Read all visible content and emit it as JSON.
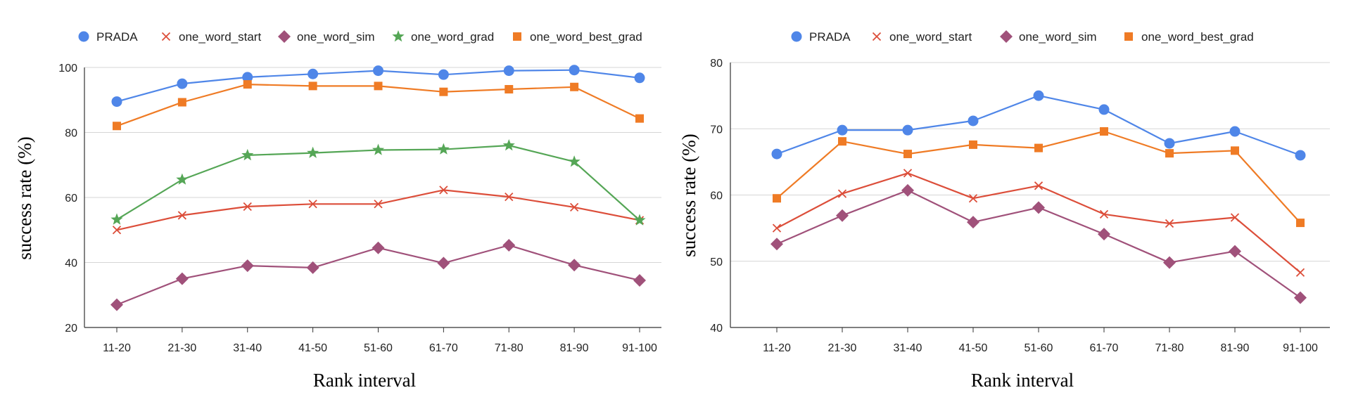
{
  "chart_data": [
    {
      "type": "line",
      "categories": [
        "11-20",
        "21-30",
        "31-40",
        "41-50",
        "51-60",
        "61-70",
        "71-80",
        "81-90",
        "91-100"
      ],
      "xlabel": "Rank interval",
      "ylabel": "success rate (%)",
      "ylim": [
        20,
        100
      ],
      "yticks": [
        20,
        40,
        60,
        80,
        100
      ],
      "grid": "horizontal",
      "legend": "top",
      "series": [
        {
          "name": "PRADA",
          "marker": "circle",
          "color": "#4f86e8",
          "values": [
            89.5,
            95,
            97,
            98,
            99,
            97.8,
            99,
            99.2,
            96.8
          ]
        },
        {
          "name": "one_word_start",
          "marker": "x",
          "color": "#dc4e3a",
          "values": [
            50,
            54.5,
            57.2,
            58,
            58,
            62.3,
            60.2,
            57,
            53
          ]
        },
        {
          "name": "one_word_sim",
          "marker": "diamond",
          "color": "#a0517a",
          "values": [
            27,
            35,
            39,
            38.4,
            44.5,
            39.8,
            45.3,
            39.2,
            34.5
          ]
        },
        {
          "name": "one_word_grad",
          "marker": "star",
          "color": "#55a656",
          "values": [
            53.2,
            65.5,
            73,
            73.7,
            74.6,
            74.8,
            76,
            71,
            53
          ]
        },
        {
          "name": "one_word_best_grad",
          "marker": "square",
          "color": "#ef7b25",
          "values": [
            82,
            89.3,
            94.8,
            94.3,
            94.3,
            92.5,
            93.3,
            94,
            84.3
          ]
        }
      ]
    },
    {
      "type": "line",
      "categories": [
        "11-20",
        "21-30",
        "31-40",
        "41-50",
        "51-60",
        "61-70",
        "71-80",
        "81-90",
        "91-100"
      ],
      "xlabel": "Rank interval",
      "ylabel": "success rate (%)",
      "ylim": [
        40,
        80
      ],
      "yticks": [
        40,
        50,
        60,
        70,
        80
      ],
      "grid": "horizontal",
      "legend": "top",
      "series": [
        {
          "name": "PRADA",
          "marker": "circle",
          "color": "#4f86e8",
          "values": [
            66.2,
            69.8,
            69.8,
            71.2,
            75,
            72.9,
            67.8,
            69.6,
            66
          ]
        },
        {
          "name": "one_word_start",
          "marker": "x",
          "color": "#dc4e3a",
          "values": [
            55,
            60.2,
            63.3,
            59.5,
            61.4,
            57.1,
            55.7,
            56.6,
            48.3
          ]
        },
        {
          "name": "one_word_sim",
          "marker": "diamond",
          "color": "#a0517a",
          "values": [
            52.6,
            56.9,
            60.7,
            55.9,
            58.1,
            54.1,
            49.8,
            51.5,
            44.5
          ]
        },
        {
          "name": "one_word_best_grad",
          "marker": "square",
          "color": "#ef7b25",
          "values": [
            59.5,
            68.1,
            66.2,
            67.6,
            67.1,
            69.6,
            66.3,
            66.7,
            55.8
          ]
        }
      ]
    }
  ]
}
